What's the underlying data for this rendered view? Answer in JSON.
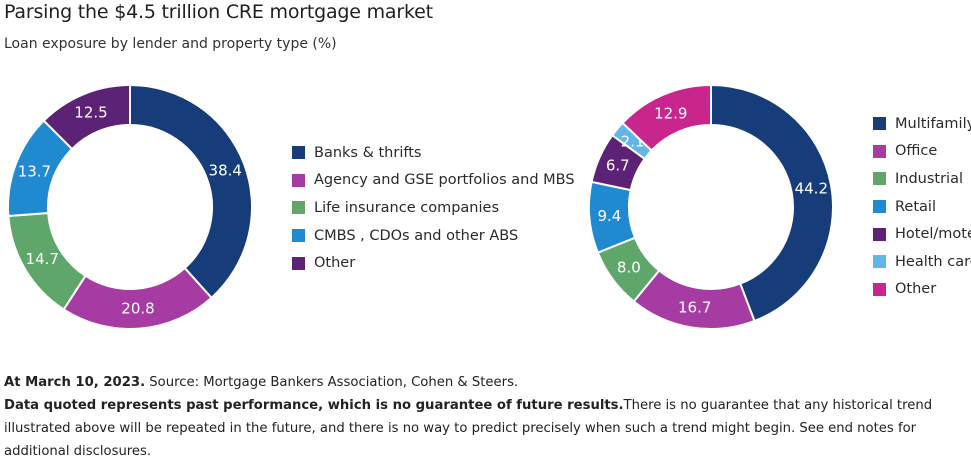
{
  "header": {
    "title": "Parsing the $4.5 trillion CRE mortgage market",
    "subtitle": "Loan exposure by lender and property type (%)"
  },
  "colors": {
    "navy": "#163D7A",
    "purple": "#A73BA4",
    "green": "#5FA66B",
    "blue": "#1F8AD0",
    "dark_purple": "#5C2275",
    "light_blue": "#61B5E9",
    "magenta": "#C8268C"
  },
  "chart_data": [
    {
      "type": "pie",
      "style": "donut",
      "categories": [
        "Banks & thrifts",
        "Agency and GSE portfolios and MBS",
        "Life insurance companies",
        "CMBS , CDOs and other ABS",
        "Other"
      ],
      "values": [
        38.4,
        20.8,
        14.7,
        13.7,
        12.5
      ],
      "labels": [
        "38.4",
        "20.8",
        "14.7",
        "13.7",
        "12.5"
      ],
      "colors": [
        "#163D7A",
        "#A73BA4",
        "#5FA66B",
        "#1F8AD0",
        "#5C2275"
      ],
      "legend_position": "right"
    },
    {
      "type": "pie",
      "style": "donut",
      "categories": [
        "Multifamily",
        "Office",
        "Industrial",
        "Retail",
        "Hotel/motel",
        "Health care",
        "Other"
      ],
      "values": [
        44.2,
        16.7,
        8.0,
        9.4,
        6.7,
        2.1,
        12.9
      ],
      "labels": [
        "44.2",
        "16.7",
        "8.0",
        "9.4",
        "6.7",
        "2.1",
        "12.9"
      ],
      "colors": [
        "#163D7A",
        "#A73BA4",
        "#5FA66B",
        "#1F8AD0",
        "#5C2275",
        "#61B5E9",
        "#C8268C"
      ],
      "legend_position": "right"
    }
  ],
  "footer": {
    "date_label": "At March 10, 2023.",
    "source": " Source: Mortgage Bankers Association, Cohen & Steers.",
    "disclaimer_bold": "Data quoted represents past performance, which is no guarantee of future results.",
    "disclaimer": "There is no guarantee that any historical trend illustrated above will be repeated in the future, and there is no way to predict precisely when such a trend might begin. See end notes for additional disclosures."
  }
}
